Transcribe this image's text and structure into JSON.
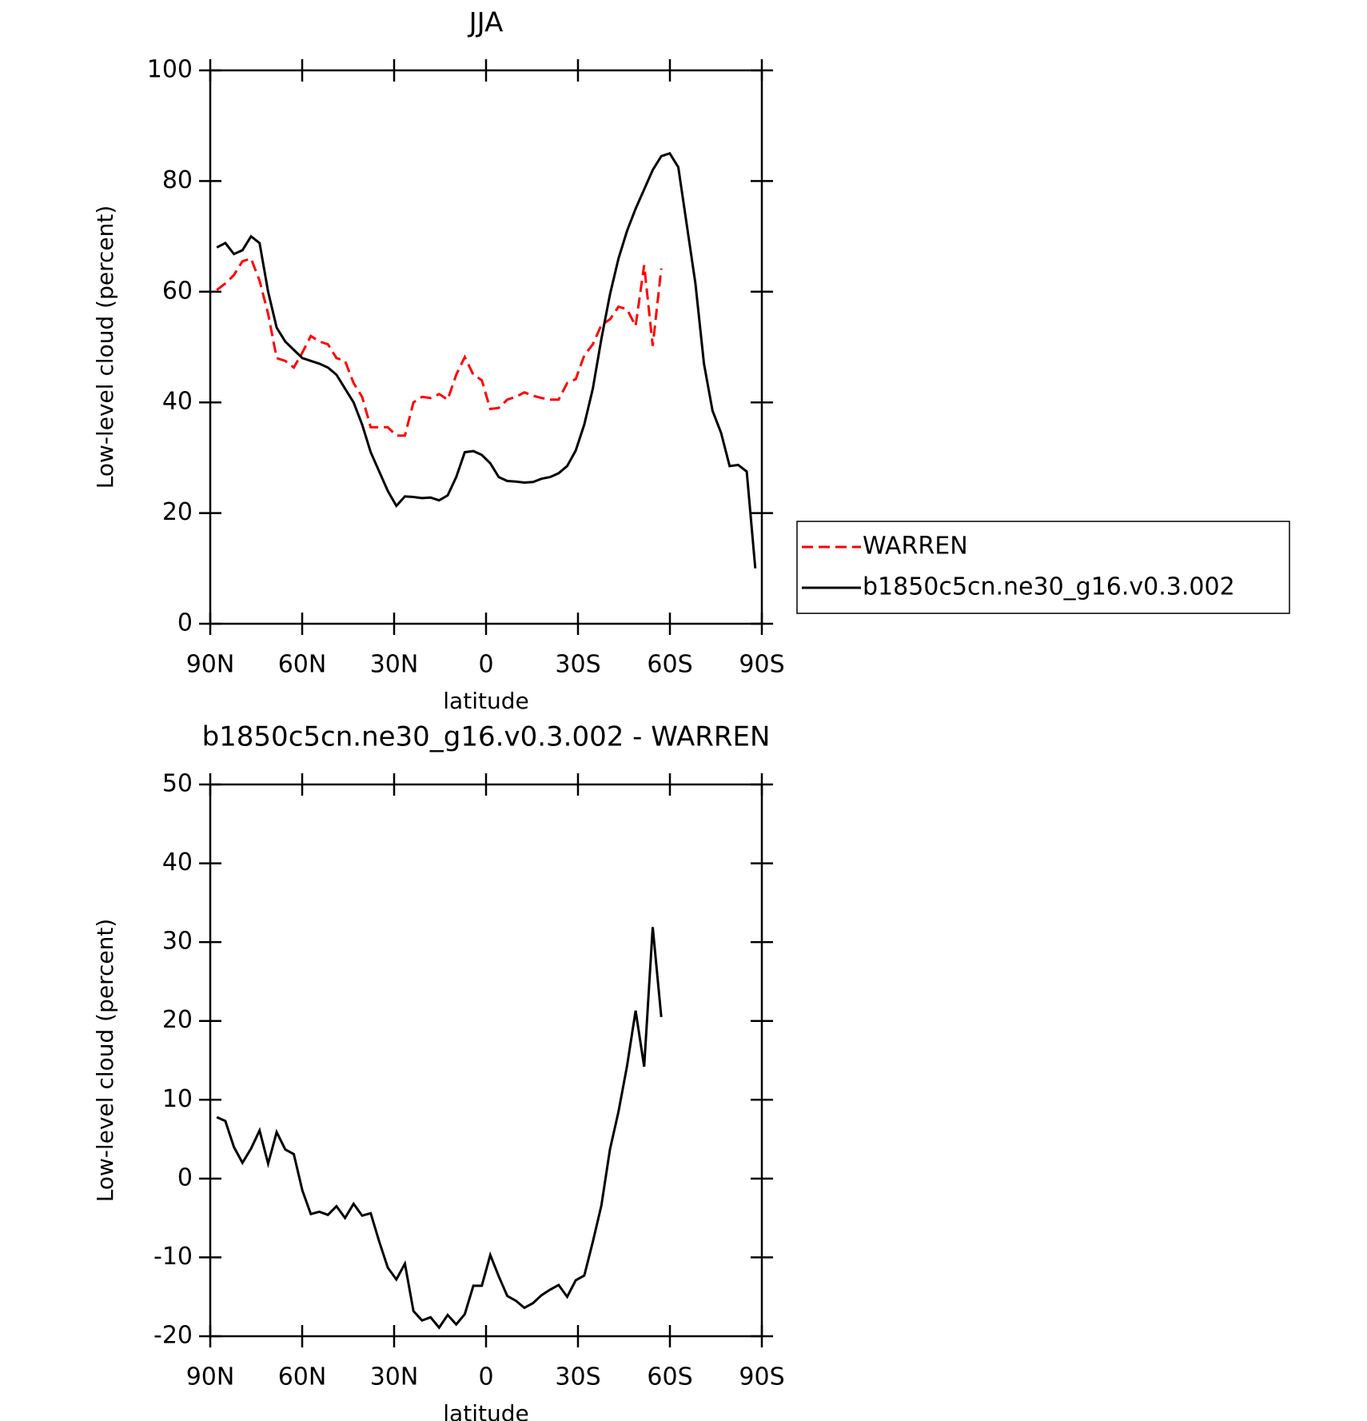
{
  "chart_data": [
    {
      "type": "line",
      "title": "JJA",
      "xlabel": "latitude",
      "ylabel": "Low-level cloud (percent)",
      "x": [
        87.86,
        85.07,
        82.28,
        79.49,
        76.7,
        73.91,
        71.12,
        68.33,
        65.54,
        62.75,
        59.96,
        57.17,
        54.38,
        51.59,
        48.8,
        46.01,
        43.22,
        40.43,
        37.64,
        34.85,
        32.06,
        29.27,
        26.48,
        23.69,
        20.9,
        18.11,
        15.32,
        12.53,
        9.74,
        6.95,
        4.16,
        1.37,
        -1.37,
        -4.16,
        -6.95,
        -9.74,
        -12.53,
        -15.32,
        -18.11,
        -20.9,
        -23.69,
        -26.48,
        -29.27,
        -32.06,
        -34.85,
        -37.64,
        -40.43,
        -43.22,
        -46.01,
        -48.8,
        -51.59,
        -54.38,
        -57.17,
        -59.96,
        -62.75,
        -65.54,
        -68.33,
        -71.12,
        -73.91,
        -76.7,
        -79.49,
        -82.28,
        -85.07,
        -87.86
      ],
      "series": [
        {
          "name": "WARREN",
          "color": "#ff0000",
          "dashed": true,
          "values": [
            60.3,
            61.5,
            63,
            65.5,
            66,
            62,
            56,
            48,
            47.5,
            46.3,
            49,
            52,
            51,
            50.5,
            48,
            47.5,
            43.5,
            41,
            35.5,
            35.5,
            35.5,
            34,
            34,
            40,
            41,
            40.8,
            41.5,
            40.5,
            45,
            48.2,
            45,
            44,
            38.8,
            39,
            40.5,
            41,
            41.8,
            41.2,
            40.8,
            40.5,
            40.5,
            43.5,
            44.2,
            48.5,
            50.5,
            54,
            55,
            57.3,
            56.8,
            53.8,
            64.8,
            50.2,
            64.2,
            null,
            null,
            null,
            null,
            null,
            null,
            null,
            null,
            null,
            null,
            null
          ]
        },
        {
          "name": "b1850c5cn.ne30_g16.v0.3.002",
          "color": "#000000",
          "dashed": false,
          "values": [
            68,
            68.8,
            66.8,
            67.5,
            70,
            68.8,
            60,
            53.5,
            51,
            49.5,
            48,
            47.5,
            47,
            46.3,
            45,
            42.5,
            40,
            36,
            31,
            27.5,
            24,
            21.3,
            23,
            22.9,
            22.7,
            22.8,
            22.3,
            23.2,
            26.5,
            31,
            31.2,
            30.5,
            29,
            26.5,
            25.8,
            25.7,
            25.5,
            25.6,
            26.2,
            26.5,
            27.2,
            28.5,
            31.3,
            36,
            42.5,
            51.5,
            59.5,
            66,
            71,
            75,
            78.5,
            82,
            84.5,
            85,
            82.5,
            72,
            61.5,
            47,
            38.5,
            34.5,
            28.5,
            28.7,
            27.5,
            10
          ]
        }
      ],
      "xlim": [
        90,
        -90
      ],
      "xticks": [
        {
          "value": 90,
          "label": "90N"
        },
        {
          "value": 60,
          "label": "60N"
        },
        {
          "value": 30,
          "label": "30N"
        },
        0,
        {
          "value": -30,
          "label": "30S"
        },
        {
          "value": -60,
          "label": "60S"
        },
        {
          "value": -90,
          "label": "90S"
        }
      ],
      "ylim": [
        0,
        100
      ],
      "yticks": [
        0,
        20,
        40,
        60,
        80,
        100
      ],
      "legend": "right"
    },
    {
      "type": "line",
      "title": "b1850c5cn.ne30_g16.v0.3.002 - WARREN",
      "xlabel": "latitude",
      "ylabel": "Low-level cloud (percent)",
      "x": [
        87.86,
        85.07,
        82.28,
        79.49,
        76.7,
        73.91,
        71.12,
        68.33,
        65.54,
        62.75,
        59.96,
        57.17,
        54.38,
        51.59,
        48.8,
        46.01,
        43.22,
        40.43,
        37.64,
        34.85,
        32.06,
        29.27,
        26.48,
        23.69,
        20.9,
        18.11,
        15.32,
        12.53,
        9.74,
        6.95,
        4.16,
        1.37,
        -1.37,
        -4.16,
        -6.95,
        -9.74,
        -12.53,
        -15.32,
        -18.11,
        -20.9,
        -23.69,
        -26.48,
        -29.27,
        -32.06,
        -34.85,
        -37.64,
        -40.43,
        -43.22,
        -46.01,
        -48.8,
        -51.59,
        -54.38,
        -57.17
      ],
      "series": [
        {
          "color": "#000000",
          "dashed": false,
          "values": [
            7.8,
            7.3,
            4,
            2,
            3.8,
            6.1,
            1.9,
            5.9,
            3.7,
            3.1,
            -1.5,
            -4.5,
            -4.2,
            -4.6,
            -3.5,
            -5,
            -3.2,
            -4.7,
            -4.4,
            -8,
            -11.3,
            -12.8,
            -10.8,
            -16.8,
            -18,
            -17.6,
            -18.9,
            -17.3,
            -18.5,
            -17.2,
            -13.6,
            -13.6,
            -9.7,
            -12.4,
            -14.9,
            -15.5,
            -16.4,
            -15.8,
            -14.8,
            -14.1,
            -13.5,
            -15,
            -12.9,
            -12.3,
            -8,
            -3.4,
            3.7,
            8.5,
            14.3,
            21.3,
            14.2,
            31.9,
            20.5
          ]
        }
      ],
      "xlim": [
        90,
        -90
      ],
      "xticks": [
        {
          "value": 90,
          "label": "90N"
        },
        {
          "value": 60,
          "label": "60N"
        },
        {
          "value": 30,
          "label": "30N"
        },
        0,
        {
          "value": -30,
          "label": "30S"
        },
        {
          "value": -60,
          "label": "60S"
        },
        {
          "value": -90,
          "label": "90S"
        }
      ],
      "ylim": [
        -20,
        50
      ],
      "yticks": [
        -20,
        -10,
        0,
        10,
        20,
        30,
        40,
        50
      ]
    }
  ]
}
